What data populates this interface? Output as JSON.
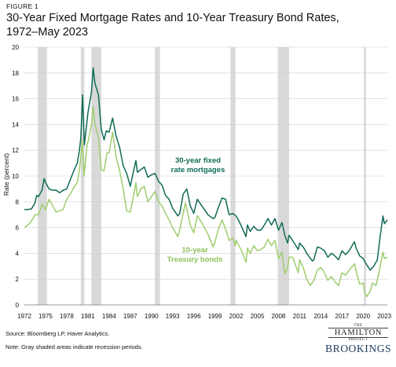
{
  "figure_label": "FIGURE 1",
  "title": "30-Year Fixed Mortgage Rates and 10-Year Treasury Bond Rates, 1972–May 2023",
  "source": "Source: Bloomberg LP, Haver Analytics.",
  "note": "Note: Gray shaded areas indicate recession periods.",
  "logo": {
    "the": "THE",
    "hamilton": "HAMILTON",
    "project": "PROJECT",
    "brookings": "BROOKINGS"
  },
  "colors": {
    "mortgage": "#0f6b57",
    "treasury": "#9fcd6e",
    "recession": "#d9d9d9",
    "grid": "#d0d0d0"
  },
  "chart_data": {
    "type": "line",
    "title": "30-Year Fixed Mortgage Rates and 10-Year Treasury Bond Rates, 1972–May 2023",
    "ylabel": "Rate (percent)",
    "xlabel": "",
    "xlim": [
      1972,
      2023.42
    ],
    "ylim": [
      0,
      20
    ],
    "yticks": [
      0,
      2,
      4,
      6,
      8,
      10,
      12,
      14,
      16,
      18,
      20
    ],
    "xticks": [
      1972,
      1975,
      1978,
      1981,
      1984,
      1987,
      1990,
      1993,
      1996,
      1999,
      2002,
      2005,
      2008,
      2011,
      2014,
      2017,
      2020,
      2023
    ],
    "grid": true,
    "recessions": [
      [
        1973.9,
        1975.2
      ],
      [
        1980.0,
        1980.5
      ],
      [
        1981.5,
        1982.9
      ],
      [
        1990.5,
        1991.2
      ],
      [
        2001.2,
        2001.9
      ],
      [
        2007.9,
        2009.5
      ],
      [
        2020.1,
        2020.4
      ]
    ],
    "series": [
      {
        "name": "30-year fixed rate mortgages",
        "points": [
          [
            1972,
            7.4
          ],
          [
            1972.5,
            7.4
          ],
          [
            1973,
            7.45
          ],
          [
            1973.5,
            7.9
          ],
          [
            1973.75,
            8.5
          ],
          [
            1974,
            8.4
          ],
          [
            1974.5,
            8.9
          ],
          [
            1974.8,
            9.8
          ],
          [
            1975,
            9.5
          ],
          [
            1975.5,
            9.0
          ],
          [
            1976,
            8.9
          ],
          [
            1976.5,
            8.9
          ],
          [
            1977,
            8.7
          ],
          [
            1977.5,
            8.9
          ],
          [
            1978,
            9.0
          ],
          [
            1978.5,
            9.7
          ],
          [
            1979,
            10.4
          ],
          [
            1979.5,
            11.0
          ],
          [
            1979.8,
            12.0
          ],
          [
            1980.0,
            13.0
          ],
          [
            1980.25,
            16.3
          ],
          [
            1980.5,
            12.4
          ],
          [
            1981,
            14.9
          ],
          [
            1981.5,
            16.5
          ],
          [
            1981.75,
            18.4
          ],
          [
            1982,
            17.2
          ],
          [
            1982.5,
            16.3
          ],
          [
            1982.9,
            13.6
          ],
          [
            1983.3,
            12.8
          ],
          [
            1983.6,
            13.5
          ],
          [
            1984,
            13.4
          ],
          [
            1984.5,
            14.5
          ],
          [
            1985,
            13.1
          ],
          [
            1985.5,
            12.2
          ],
          [
            1986,
            10.8
          ],
          [
            1986.5,
            10.2
          ],
          [
            1987,
            9.2
          ],
          [
            1987.5,
            10.5
          ],
          [
            1987.8,
            11.2
          ],
          [
            1988,
            10.3
          ],
          [
            1988.5,
            10.5
          ],
          [
            1989,
            10.7
          ],
          [
            1989.5,
            9.9
          ],
          [
            1990,
            10.1
          ],
          [
            1990.5,
            10.2
          ],
          [
            1991,
            9.6
          ],
          [
            1991.5,
            9.3
          ],
          [
            1992,
            8.5
          ],
          [
            1992.5,
            8.2
          ],
          [
            1993,
            7.5
          ],
          [
            1993.75,
            6.9
          ],
          [
            1994,
            7.1
          ],
          [
            1994.5,
            8.6
          ],
          [
            1995,
            9.0
          ],
          [
            1995.5,
            7.7
          ],
          [
            1996,
            7.1
          ],
          [
            1996.5,
            8.2
          ],
          [
            1997,
            7.8
          ],
          [
            1997.5,
            7.4
          ],
          [
            1998,
            7.0
          ],
          [
            1998.75,
            6.7
          ],
          [
            1999,
            6.8
          ],
          [
            1999.5,
            7.6
          ],
          [
            2000,
            8.3
          ],
          [
            2000.5,
            8.2
          ],
          [
            2001,
            7.0
          ],
          [
            2001.5,
            7.1
          ],
          [
            2002,
            6.9
          ],
          [
            2002.5,
            6.4
          ],
          [
            2003,
            5.8
          ],
          [
            2003.4,
            5.3
          ],
          [
            2003.6,
            6.2
          ],
          [
            2004,
            5.7
          ],
          [
            2004.5,
            6.1
          ],
          [
            2005,
            5.8
          ],
          [
            2005.5,
            5.8
          ],
          [
            2006,
            6.2
          ],
          [
            2006.5,
            6.7
          ],
          [
            2007,
            6.2
          ],
          [
            2007.5,
            6.7
          ],
          [
            2008,
            5.8
          ],
          [
            2008.5,
            6.4
          ],
          [
            2008.9,
            5.4
          ],
          [
            2009.3,
            4.8
          ],
          [
            2009.5,
            5.4
          ],
          [
            2010,
            5.0
          ],
          [
            2010.8,
            4.3
          ],
          [
            2011,
            4.8
          ],
          [
            2011.5,
            4.5
          ],
          [
            2012,
            4.0
          ],
          [
            2012.8,
            3.4
          ],
          [
            2013,
            3.5
          ],
          [
            2013.5,
            4.5
          ],
          [
            2014,
            4.4
          ],
          [
            2014.5,
            4.2
          ],
          [
            2015,
            3.7
          ],
          [
            2015.5,
            4.0
          ],
          [
            2016,
            3.8
          ],
          [
            2016.5,
            3.5
          ],
          [
            2017,
            4.2
          ],
          [
            2017.5,
            3.9
          ],
          [
            2018,
            4.2
          ],
          [
            2018.75,
            4.9
          ],
          [
            2019,
            4.4
          ],
          [
            2019.5,
            3.8
          ],
          [
            2020,
            3.6
          ],
          [
            2020.5,
            3.1
          ],
          [
            2021,
            2.7
          ],
          [
            2021.5,
            3.0
          ],
          [
            2022,
            3.5
          ],
          [
            2022.4,
            5.3
          ],
          [
            2022.8,
            6.9
          ],
          [
            2023,
            6.3
          ],
          [
            2023.42,
            6.6
          ]
        ]
      },
      {
        "name": "10-year Treasury bonds",
        "points": [
          [
            1972,
            6.0
          ],
          [
            1972.5,
            6.2
          ],
          [
            1973,
            6.5
          ],
          [
            1973.5,
            7.0
          ],
          [
            1974,
            7.0
          ],
          [
            1974.5,
            7.8
          ],
          [
            1975,
            7.4
          ],
          [
            1975.5,
            8.2
          ],
          [
            1976,
            7.7
          ],
          [
            1976.5,
            7.2
          ],
          [
            1977,
            7.3
          ],
          [
            1977.5,
            7.4
          ],
          [
            1978,
            8.2
          ],
          [
            1978.5,
            8.6
          ],
          [
            1979,
            9.1
          ],
          [
            1979.5,
            9.5
          ],
          [
            1979.8,
            10.5
          ],
          [
            1980,
            11.5
          ],
          [
            1980.2,
            12.8
          ],
          [
            1980.45,
            10.0
          ],
          [
            1980.9,
            12.5
          ],
          [
            1981,
            12.6
          ],
          [
            1981.5,
            14.0
          ],
          [
            1981.75,
            15.4
          ],
          [
            1982,
            14.0
          ],
          [
            1982.5,
            13.0
          ],
          [
            1982.9,
            10.5
          ],
          [
            1983.3,
            10.4
          ],
          [
            1983.7,
            11.8
          ],
          [
            1984,
            11.8
          ],
          [
            1984.5,
            13.4
          ],
          [
            1985,
            11.5
          ],
          [
            1985.5,
            10.4
          ],
          [
            1986,
            9.0
          ],
          [
            1986.5,
            7.3
          ],
          [
            1987,
            7.2
          ],
          [
            1987.5,
            8.6
          ],
          [
            1987.8,
            9.5
          ],
          [
            1988,
            8.4
          ],
          [
            1988.5,
            9.0
          ],
          [
            1989,
            9.2
          ],
          [
            1989.5,
            8.0
          ],
          [
            1990,
            8.4
          ],
          [
            1990.5,
            8.8
          ],
          [
            1991,
            8.0
          ],
          [
            1991.5,
            7.7
          ],
          [
            1992,
            7.1
          ],
          [
            1992.5,
            6.6
          ],
          [
            1993,
            6.0
          ],
          [
            1993.75,
            5.3
          ],
          [
            1994,
            5.8
          ],
          [
            1994.8,
            7.9
          ],
          [
            1995,
            7.5
          ],
          [
            1995.5,
            6.2
          ],
          [
            1996,
            5.6
          ],
          [
            1996.5,
            6.9
          ],
          [
            1997,
            6.5
          ],
          [
            1997.5,
            6.0
          ],
          [
            1998,
            5.5
          ],
          [
            1998.75,
            4.5
          ],
          [
            1999,
            4.9
          ],
          [
            1999.5,
            5.9
          ],
          [
            2000,
            6.6
          ],
          [
            2000.5,
            5.9
          ],
          [
            2001,
            5.0
          ],
          [
            2001.5,
            5.2
          ],
          [
            2001.9,
            4.6
          ],
          [
            2002,
            5.0
          ],
          [
            2002.5,
            4.5
          ],
          [
            2003,
            3.9
          ],
          [
            2003.4,
            3.3
          ],
          [
            2003.6,
            4.4
          ],
          [
            2004,
            4.0
          ],
          [
            2004.5,
            4.6
          ],
          [
            2005,
            4.2
          ],
          [
            2005.5,
            4.3
          ],
          [
            2006,
            4.5
          ],
          [
            2006.5,
            5.1
          ],
          [
            2007,
            4.6
          ],
          [
            2007.5,
            5.0
          ],
          [
            2008,
            3.6
          ],
          [
            2008.5,
            4.1
          ],
          [
            2008.9,
            2.4
          ],
          [
            2009.3,
            2.9
          ],
          [
            2009.5,
            3.7
          ],
          [
            2010,
            3.7
          ],
          [
            2010.8,
            2.5
          ],
          [
            2011,
            3.5
          ],
          [
            2011.5,
            2.9
          ],
          [
            2012,
            2.0
          ],
          [
            2012.5,
            1.5
          ],
          [
            2013,
            1.9
          ],
          [
            2013.5,
            2.7
          ],
          [
            2014,
            2.9
          ],
          [
            2014.5,
            2.5
          ],
          [
            2015,
            1.9
          ],
          [
            2015.5,
            2.2
          ],
          [
            2016,
            1.8
          ],
          [
            2016.5,
            1.5
          ],
          [
            2017,
            2.5
          ],
          [
            2017.5,
            2.3
          ],
          [
            2018,
            2.7
          ],
          [
            2018.8,
            3.2
          ],
          [
            2019,
            2.6
          ],
          [
            2019.5,
            1.6
          ],
          [
            2020,
            1.7
          ],
          [
            2020.2,
            0.9
          ],
          [
            2020.5,
            0.65
          ],
          [
            2021,
            1.1
          ],
          [
            2021.3,
            1.7
          ],
          [
            2021.8,
            1.5
          ],
          [
            2022,
            1.9
          ],
          [
            2022.4,
            3.0
          ],
          [
            2022.8,
            4.1
          ],
          [
            2023,
            3.6
          ],
          [
            2023.42,
            3.7
          ]
        ]
      }
    ],
    "annotations": [
      {
        "series": "30-year fixed rate mortgages",
        "lines": [
          "30-year fixed",
          "rate mortgages"
        ]
      },
      {
        "series": "10-year Treasury bonds",
        "lines": [
          "10-year",
          "Treasury bonds"
        ]
      }
    ]
  }
}
